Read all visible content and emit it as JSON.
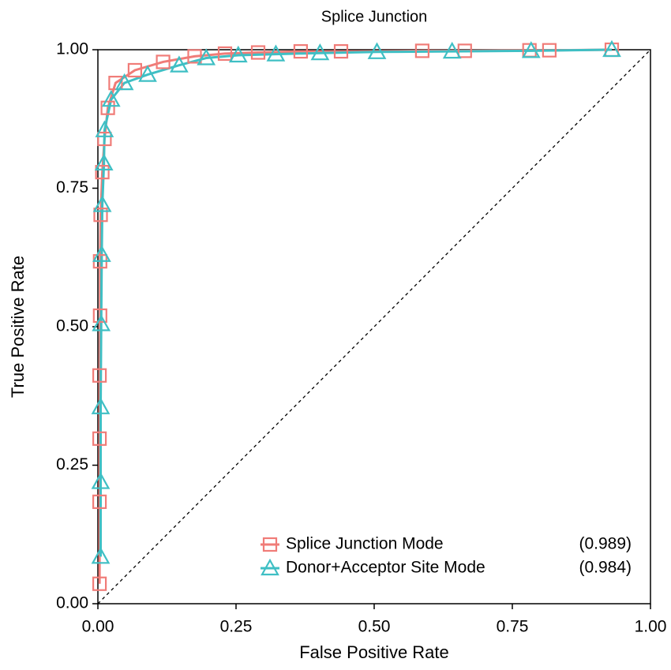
{
  "chart_data": {
    "type": "line",
    "title": "Splice Junction",
    "x_label": "False Positive Rate",
    "y_label": "True Positive Rate",
    "xlim": [
      0,
      1
    ],
    "ylim": [
      0,
      1
    ],
    "xticks": [
      {
        "value": 0,
        "label": "0.00"
      },
      {
        "value": 0.25,
        "label": "0.25"
      },
      {
        "value": 0.5,
        "label": "0.50"
      },
      {
        "value": 0.75,
        "label": "0.75"
      },
      {
        "value": 1,
        "label": "1.00"
      }
    ],
    "yticks": [
      {
        "value": 0,
        "label": "0.00"
      },
      {
        "value": 0.25,
        "label": "0.25"
      },
      {
        "value": 0.5,
        "label": "0.50"
      },
      {
        "value": 0.75,
        "label": "0.75"
      },
      {
        "value": 1,
        "label": "1.00"
      }
    ],
    "legend_position": "lower right",
    "series": [
      {
        "name": "Splice Junction Mode",
        "auc_label": "(0.989)",
        "color": "#f07c78",
        "marker": "square",
        "x": [
          0.003,
          0.003,
          0.003,
          0.003,
          0.004,
          0.004,
          0.005,
          0.008,
          0.012,
          0.018,
          0.032,
          0.067,
          0.118,
          0.175,
          0.23,
          0.29,
          0.367,
          0.44,
          0.587,
          0.664,
          0.781,
          0.817,
          0.93
        ],
        "values": [
          0.036,
          0.184,
          0.298,
          0.412,
          0.52,
          0.618,
          0.702,
          0.779,
          0.839,
          0.895,
          0.94,
          0.963,
          0.978,
          0.988,
          0.993,
          0.995,
          0.997,
          0.997,
          0.998,
          0.998,
          0.999,
          0.999,
          1.0
        ]
      },
      {
        "name": "Donor+Acceptor Site Mode",
        "auc_label": "(0.984)",
        "color": "#3fbfc4",
        "marker": "triangle",
        "x": [
          0.005,
          0.005,
          0.005,
          0.006,
          0.007,
          0.008,
          0.011,
          0.012,
          0.024,
          0.048,
          0.09,
          0.147,
          0.196,
          0.254,
          0.322,
          0.402,
          0.505,
          0.641,
          0.784,
          0.93
        ],
        "values": [
          0.085,
          0.22,
          0.355,
          0.505,
          0.63,
          0.72,
          0.795,
          0.855,
          0.91,
          0.94,
          0.955,
          0.972,
          0.985,
          0.99,
          0.992,
          0.994,
          0.996,
          0.997,
          0.998,
          1.0
        ]
      }
    ]
  }
}
